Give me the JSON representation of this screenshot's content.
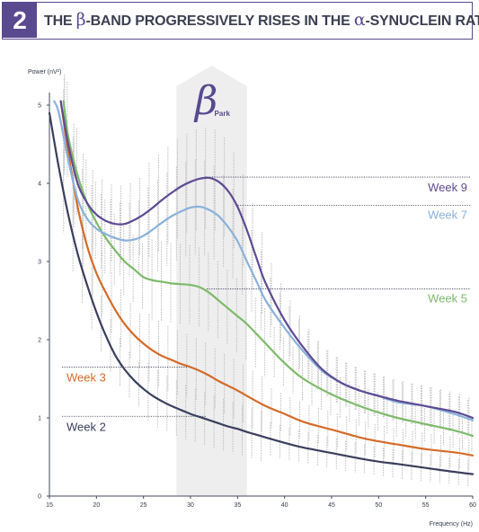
{
  "header": {
    "number": "2",
    "title_part1": "THE ",
    "title_beta": "β",
    "title_part2": "-BAND PROGRESSIVELY RISES IN THE ",
    "title_alpha": "α",
    "title_part3": "-SYNUCLEIN RAT"
  },
  "colors": {
    "accent": "#59498f",
    "band": "#eeeeef",
    "week2": "#3a3f5c",
    "week3": "#d46b2a",
    "week5": "#7dba6a",
    "week7": "#8ab2da",
    "week9": "#5e4b93",
    "errorbar": "#b8b8b8"
  },
  "chart_data": {
    "type": "line",
    "ylabel": "Power (nV²)",
    "xlabel": "Frequency (Hz)",
    "xlim": [
      15,
      60
    ],
    "ylim": [
      0,
      5
    ],
    "xticks": [
      "15",
      "20",
      "25",
      "30",
      "35",
      "40",
      "45",
      "50",
      "55",
      "60"
    ],
    "yticks": [
      "0",
      "1",
      "2",
      "3",
      "4",
      "5"
    ],
    "band": {
      "from": 28.5,
      "to": 36,
      "label": "β",
      "sublabel": "Park"
    },
    "series": [
      {
        "name": "Week 2",
        "color": "#3a3f5c",
        "peak_level": 1.02,
        "x": [
          15,
          16,
          17,
          18,
          19,
          20,
          21,
          22,
          23,
          24,
          25,
          26,
          27,
          28,
          29,
          30,
          31,
          32,
          33,
          34,
          35,
          36,
          38,
          40,
          42,
          45,
          48,
          50,
          52,
          55,
          58,
          60
        ],
        "y": [
          4.9,
          4.2,
          3.6,
          3.1,
          2.7,
          2.35,
          2.05,
          1.8,
          1.62,
          1.48,
          1.37,
          1.28,
          1.21,
          1.15,
          1.1,
          1.05,
          1.01,
          0.97,
          0.93,
          0.89,
          0.86,
          0.82,
          0.75,
          0.68,
          0.62,
          0.55,
          0.48,
          0.44,
          0.41,
          0.36,
          0.31,
          0.28
        ]
      },
      {
        "name": "Week 3",
        "color": "#d46b2a",
        "peak_level": 1.65,
        "x": [
          16.2,
          17,
          18,
          19,
          20,
          21,
          22,
          23,
          24,
          25,
          26,
          27,
          28,
          29,
          30,
          31,
          32,
          33,
          34,
          35,
          36,
          38,
          40,
          42,
          45,
          48,
          50,
          52,
          55,
          58,
          60
        ],
        "y": [
          5.05,
          4.4,
          3.7,
          3.2,
          2.85,
          2.6,
          2.38,
          2.2,
          2.06,
          1.95,
          1.86,
          1.79,
          1.74,
          1.69,
          1.65,
          1.6,
          1.54,
          1.47,
          1.41,
          1.35,
          1.28,
          1.15,
          1.05,
          0.95,
          0.85,
          0.75,
          0.7,
          0.66,
          0.6,
          0.56,
          0.52
        ]
      },
      {
        "name": "Week 5",
        "color": "#7dba6a",
        "peak_level": 2.65,
        "x": [
          16.5,
          17,
          18,
          19,
          20,
          21,
          22,
          23,
          24,
          25,
          26,
          27,
          28,
          29,
          30,
          31,
          32,
          33,
          34,
          35,
          36,
          38,
          40,
          42,
          45,
          48,
          50,
          52,
          55,
          58,
          60
        ],
        "y": [
          5.05,
          4.6,
          4.1,
          3.75,
          3.5,
          3.3,
          3.14,
          3.0,
          2.9,
          2.8,
          2.76,
          2.74,
          2.72,
          2.71,
          2.7,
          2.67,
          2.6,
          2.5,
          2.4,
          2.3,
          2.2,
          1.95,
          1.7,
          1.5,
          1.3,
          1.15,
          1.07,
          1.0,
          0.92,
          0.84,
          0.77
        ]
      },
      {
        "name": "Week 7",
        "color": "#8ab2da",
        "peak_level": 3.72,
        "x": [
          15.5,
          16,
          17,
          18,
          19,
          20,
          21,
          22,
          23,
          24,
          25,
          26,
          27,
          28,
          29,
          30,
          31,
          32,
          33,
          34,
          35,
          36,
          37,
          38,
          40,
          42,
          44,
          46,
          48,
          50,
          52,
          55,
          58,
          60
        ],
        "y": [
          5.05,
          4.9,
          4.3,
          3.8,
          3.55,
          3.42,
          3.35,
          3.3,
          3.27,
          3.28,
          3.33,
          3.41,
          3.5,
          3.58,
          3.64,
          3.69,
          3.7,
          3.66,
          3.58,
          3.44,
          3.26,
          3.0,
          2.75,
          2.5,
          2.15,
          1.85,
          1.6,
          1.45,
          1.35,
          1.28,
          1.2,
          1.15,
          1.05,
          0.97
        ]
      },
      {
        "name": "Week 9",
        "color": "#5e4b93",
        "peak_level": 4.08,
        "x": [
          16.2,
          17,
          18,
          19,
          20,
          21,
          22,
          23,
          24,
          25,
          26,
          27,
          28,
          29,
          30,
          31,
          32,
          33,
          34,
          35,
          36,
          37,
          38,
          40,
          42,
          44,
          46,
          48,
          50,
          52,
          55,
          58,
          60
        ],
        "y": [
          5.05,
          4.5,
          4.0,
          3.75,
          3.6,
          3.52,
          3.48,
          3.48,
          3.53,
          3.6,
          3.69,
          3.79,
          3.88,
          3.96,
          4.02,
          4.06,
          4.07,
          4.02,
          3.9,
          3.7,
          3.4,
          3.05,
          2.72,
          2.25,
          1.9,
          1.62,
          1.45,
          1.35,
          1.28,
          1.22,
          1.15,
          1.08,
          1.0
        ]
      }
    ]
  }
}
